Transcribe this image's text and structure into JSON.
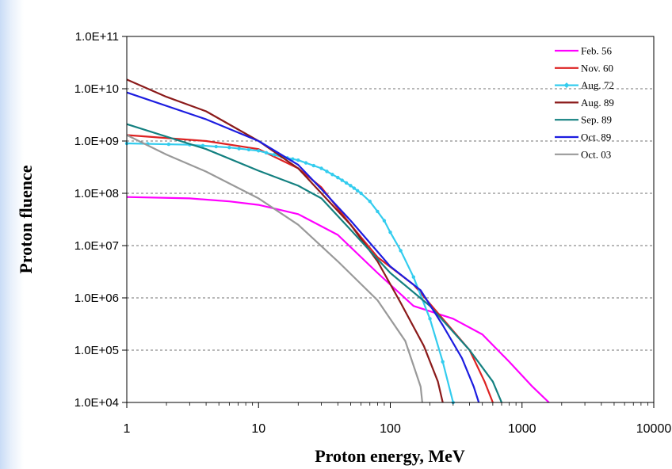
{
  "chart_data": {
    "type": "line",
    "xlabel": "Proton energy, MeV",
    "ylabel": "Proton fluence",
    "x_scale": "log",
    "y_scale": "log",
    "xlim": [
      1,
      10000
    ],
    "ylim": [
      10000,
      100000000000
    ],
    "x_ticks": [
      "1",
      "10",
      "100",
      "1000",
      "10000"
    ],
    "y_ticks": [
      "1.0E+04",
      "1.0E+05",
      "1.0E+06",
      "1.0E+07",
      "1.0E+08",
      "1.0E+09",
      "1.0E+10",
      "1.0E+11"
    ],
    "grid": "horizontal dashed",
    "legend_position": "top-right",
    "series": [
      {
        "name": "Feb. 56",
        "color": "#ff00ff",
        "marker": false,
        "points": [
          [
            1,
            85000000.0
          ],
          [
            3,
            80000000.0
          ],
          [
            6,
            70000000.0
          ],
          [
            10,
            60000000.0
          ],
          [
            20,
            40000000.0
          ],
          [
            40,
            16000000.0
          ],
          [
            80,
            3000000.0
          ],
          [
            150,
            700000.0
          ],
          [
            300,
            400000.0
          ],
          [
            500,
            200000.0
          ],
          [
            800,
            60000.0
          ],
          [
            1200,
            20000.0
          ],
          [
            1600,
            10000.0
          ]
        ]
      },
      {
        "name": "Nov. 60",
        "color": "#dd2222",
        "marker": false,
        "points": [
          [
            1,
            1300000000.0
          ],
          [
            4,
            1000000000.0
          ],
          [
            10,
            700000000.0
          ],
          [
            20,
            300000000.0
          ],
          [
            30,
            130000000.0
          ],
          [
            50,
            25000000.0
          ],
          [
            80,
            6000000.0
          ],
          [
            150,
            1800000.0
          ],
          [
            250,
            400000.0
          ],
          [
            400,
            100000.0
          ],
          [
            520,
            25000.0
          ],
          [
            600,
            10000.0
          ]
        ]
      },
      {
        "name": "Aug. 72",
        "color": "#33ccee",
        "marker": true,
        "points": [
          [
            1,
            900000000.0
          ],
          [
            3,
            850000000.0
          ],
          [
            6,
            750000000.0
          ],
          [
            10,
            650000000.0
          ],
          [
            15,
            500000000.0
          ],
          [
            20,
            430000000.0
          ],
          [
            30,
            300000000.0
          ],
          [
            40,
            200000000.0
          ],
          [
            50,
            140000000.0
          ],
          [
            60,
            100000000.0
          ],
          [
            70,
            70000000.0
          ],
          [
            80,
            45000000.0
          ],
          [
            90,
            30000000.0
          ],
          [
            100,
            18000000.0
          ],
          [
            120,
            8000000.0
          ],
          [
            150,
            2500000.0
          ],
          [
            200,
            400000.0
          ],
          [
            250,
            60000.0
          ],
          [
            300,
            10000.0
          ]
        ]
      },
      {
        "name": "Aug. 89",
        "color": "#8b1a1a",
        "marker": false,
        "points": [
          [
            1,
            15000000000.0
          ],
          [
            2,
            7000000000.0
          ],
          [
            4,
            3700000000.0
          ],
          [
            10,
            1000000000.0
          ],
          [
            20,
            300000000.0
          ],
          [
            30,
            100000000.0
          ],
          [
            50,
            25000000.0
          ],
          [
            80,
            5000000.0
          ],
          [
            120,
            800000.0
          ],
          [
            180,
            120000.0
          ],
          [
            230,
            25000.0
          ],
          [
            250,
            10000.0
          ]
        ]
      },
      {
        "name": "Sep. 89",
        "color": "#138080",
        "marker": false,
        "points": [
          [
            1,
            2100000000.0
          ],
          [
            4,
            700000000.0
          ],
          [
            10,
            270000000.0
          ],
          [
            20,
            140000000.0
          ],
          [
            30,
            80000000.0
          ],
          [
            50,
            20000000.0
          ],
          [
            100,
            3000000.0
          ],
          [
            200,
            700000.0
          ],
          [
            400,
            100000.0
          ],
          [
            600,
            25000.0
          ],
          [
            700,
            10000.0
          ]
        ]
      },
      {
        "name": "Oct. 89",
        "color": "#1c1ce0",
        "marker": false,
        "points": [
          [
            1,
            8500000000.0
          ],
          [
            4,
            2600000000.0
          ],
          [
            10,
            1000000000.0
          ],
          [
            20,
            350000000.0
          ],
          [
            30,
            120000000.0
          ],
          [
            50,
            30000000.0
          ],
          [
            100,
            4000000.0
          ],
          [
            170,
            1400000.0
          ],
          [
            250,
            300000.0
          ],
          [
            350,
            70000.0
          ],
          [
            430,
            20000.0
          ],
          [
            470,
            10000.0
          ]
        ]
      },
      {
        "name": "Oct. 03",
        "color": "#999999",
        "marker": false,
        "points": [
          [
            1,
            1300000000.0
          ],
          [
            2,
            550000000.0
          ],
          [
            4,
            260000000.0
          ],
          [
            10,
            80000000.0
          ],
          [
            20,
            25000000.0
          ],
          [
            40,
            5000000.0
          ],
          [
            80,
            900000.0
          ],
          [
            130,
            150000.0
          ],
          [
            170,
            20000.0
          ],
          [
            175,
            10000.0
          ]
        ]
      }
    ]
  }
}
